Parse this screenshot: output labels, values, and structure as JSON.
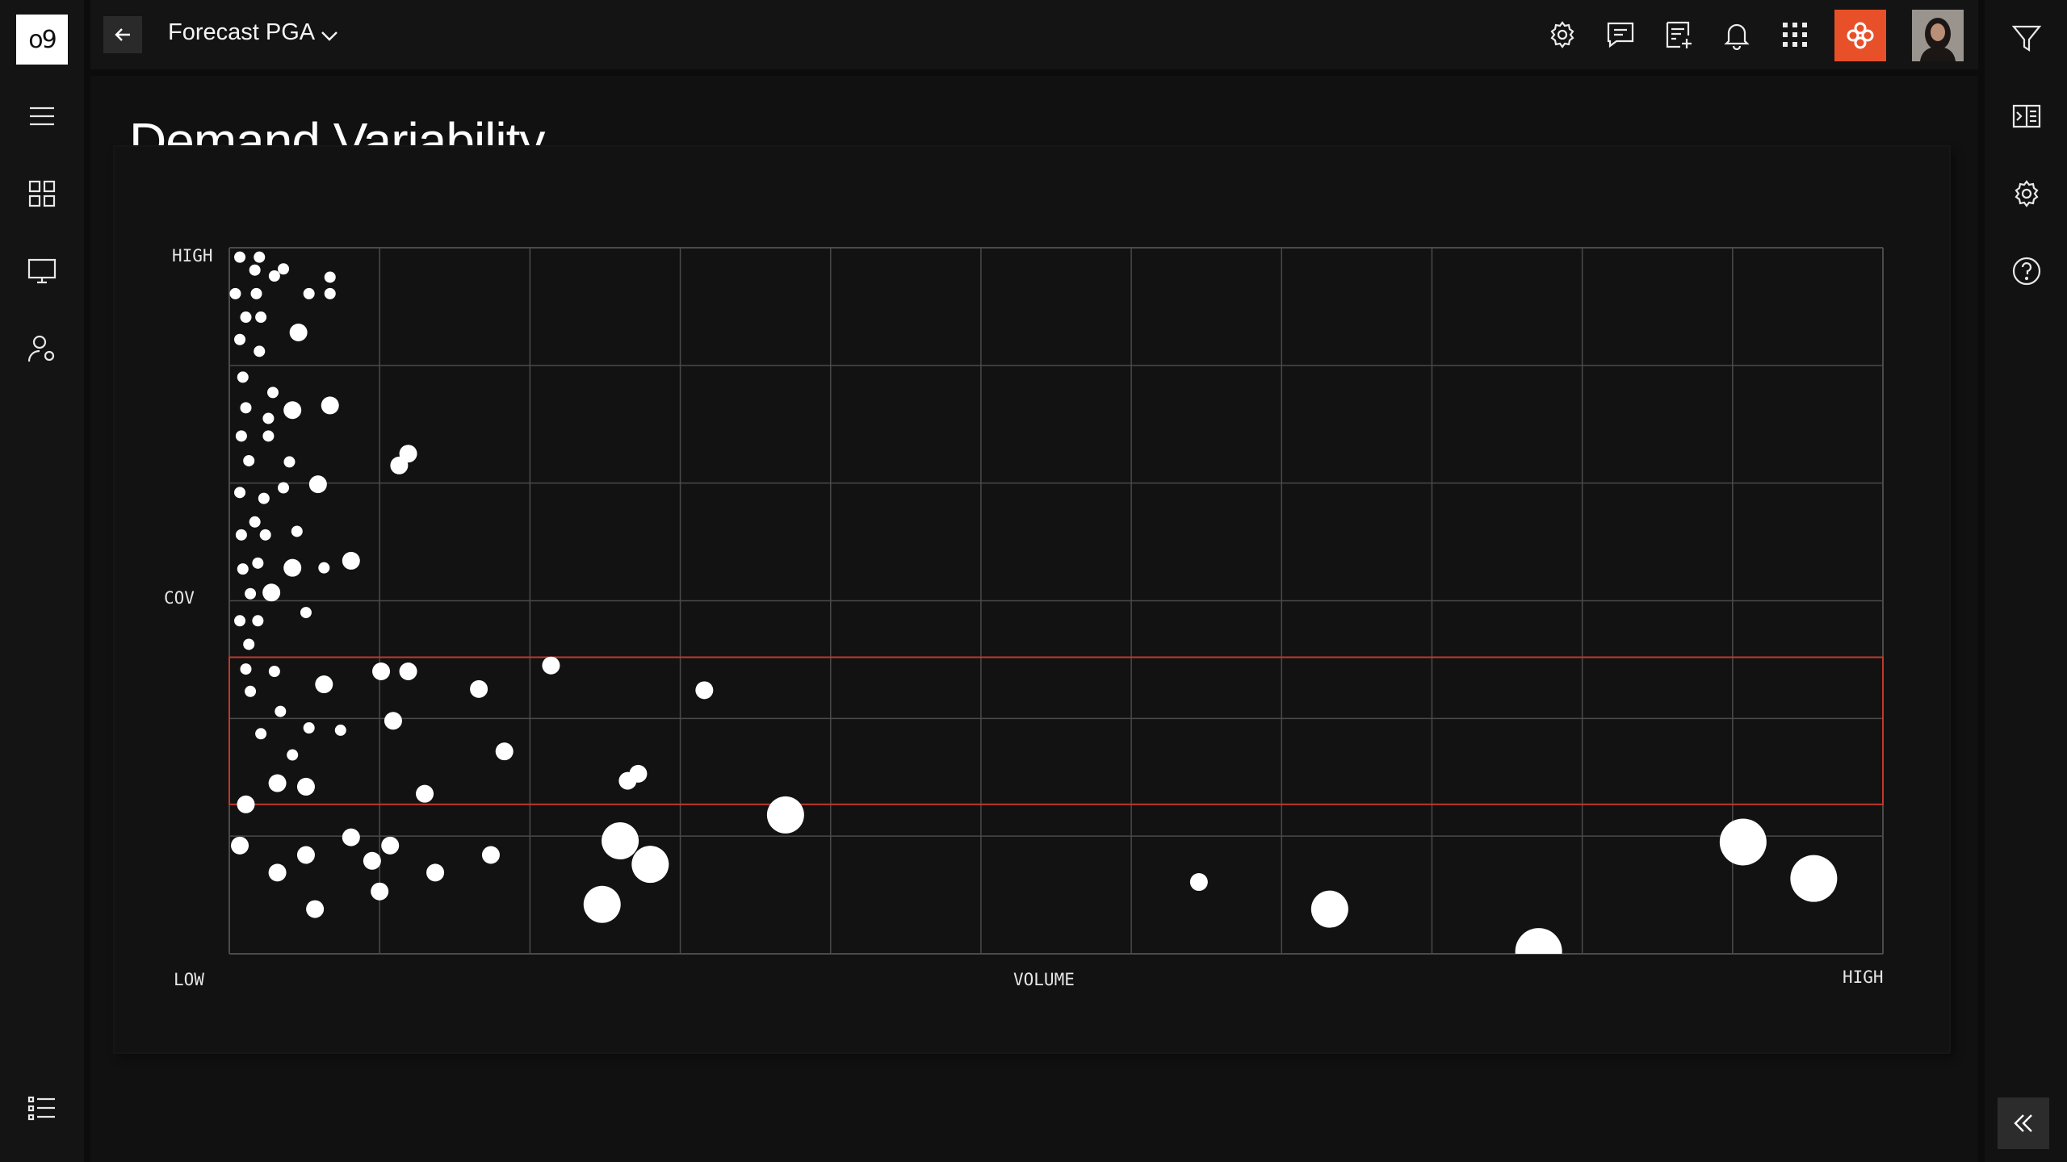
{
  "app": {
    "logo_text": "o9",
    "title": "Forecast PGA"
  },
  "page": {
    "title": "Demand Variability"
  },
  "colors": {
    "background": "#0c0c0c",
    "panel": "#141414",
    "accent": "#e8502a",
    "highlight_band": "#c0392b",
    "point": "#ffffff",
    "grid": "#4a4a4a"
  },
  "icons": {
    "left_rail": [
      "menu-icon",
      "grid-icon",
      "monitor-icon",
      "user-settings-icon",
      "list-icon"
    ],
    "top_bar": [
      "gear-icon",
      "comment-icon",
      "note-add-icon",
      "bell-icon",
      "apps-grid-icon"
    ],
    "right_rail": [
      "filter-icon",
      "panel-icon",
      "gear-icon",
      "help-icon",
      "collapse-icon"
    ]
  },
  "chart_data": {
    "type": "scatter",
    "title": "Demand Variability",
    "xlabel": "VOLUME",
    "ylabel": "COV",
    "x_tick_labels": {
      "low": "LOW",
      "high": "HIGH"
    },
    "y_tick_labels": {
      "high": "HIGH"
    },
    "xlim": [
      0,
      11
    ],
    "ylim": [
      0,
      6
    ],
    "grid": true,
    "highlight_band": {
      "y_from": 1.27,
      "y_to": 2.52
    },
    "points": [
      {
        "x": 0.07,
        "y": 5.92,
        "s": 1
      },
      {
        "x": 0.2,
        "y": 5.92,
        "s": 1
      },
      {
        "x": 0.17,
        "y": 5.81,
        "s": 1
      },
      {
        "x": 0.3,
        "y": 5.76,
        "s": 1
      },
      {
        "x": 0.36,
        "y": 5.82,
        "s": 1
      },
      {
        "x": 0.04,
        "y": 5.61,
        "s": 1
      },
      {
        "x": 0.18,
        "y": 5.61,
        "s": 1
      },
      {
        "x": 0.53,
        "y": 5.61,
        "s": 1
      },
      {
        "x": 0.67,
        "y": 5.61,
        "s": 1
      },
      {
        "x": 0.67,
        "y": 5.75,
        "s": 1
      },
      {
        "x": 0.11,
        "y": 5.41,
        "s": 1
      },
      {
        "x": 0.21,
        "y": 5.41,
        "s": 1
      },
      {
        "x": 0.46,
        "y": 5.28,
        "s": 2
      },
      {
        "x": 0.07,
        "y": 5.22,
        "s": 1
      },
      {
        "x": 0.2,
        "y": 5.12,
        "s": 1
      },
      {
        "x": 0.09,
        "y": 4.9,
        "s": 1
      },
      {
        "x": 0.29,
        "y": 4.77,
        "s": 1
      },
      {
        "x": 0.11,
        "y": 4.64,
        "s": 1
      },
      {
        "x": 0.26,
        "y": 4.55,
        "s": 1
      },
      {
        "x": 0.42,
        "y": 4.62,
        "s": 2
      },
      {
        "x": 0.67,
        "y": 4.66,
        "s": 2
      },
      {
        "x": 0.08,
        "y": 4.4,
        "s": 1
      },
      {
        "x": 0.26,
        "y": 4.4,
        "s": 1
      },
      {
        "x": 0.13,
        "y": 4.19,
        "s": 1
      },
      {
        "x": 0.4,
        "y": 4.18,
        "s": 1
      },
      {
        "x": 0.59,
        "y": 3.99,
        "s": 2
      },
      {
        "x": 1.13,
        "y": 4.15,
        "s": 2
      },
      {
        "x": 1.19,
        "y": 4.25,
        "s": 2
      },
      {
        "x": 0.07,
        "y": 3.92,
        "s": 1
      },
      {
        "x": 0.23,
        "y": 3.87,
        "s": 1
      },
      {
        "x": 0.36,
        "y": 3.96,
        "s": 1
      },
      {
        "x": 0.17,
        "y": 3.67,
        "s": 1
      },
      {
        "x": 0.08,
        "y": 3.56,
        "s": 1
      },
      {
        "x": 0.24,
        "y": 3.56,
        "s": 1
      },
      {
        "x": 0.45,
        "y": 3.59,
        "s": 1
      },
      {
        "x": 0.09,
        "y": 3.27,
        "s": 1
      },
      {
        "x": 0.19,
        "y": 3.32,
        "s": 1
      },
      {
        "x": 0.42,
        "y": 3.28,
        "s": 2
      },
      {
        "x": 0.63,
        "y": 3.28,
        "s": 1
      },
      {
        "x": 0.81,
        "y": 3.34,
        "s": 2
      },
      {
        "x": 0.14,
        "y": 3.06,
        "s": 1
      },
      {
        "x": 0.28,
        "y": 3.07,
        "s": 2
      },
      {
        "x": 0.51,
        "y": 2.9,
        "s": 1
      },
      {
        "x": 0.07,
        "y": 2.83,
        "s": 1
      },
      {
        "x": 0.19,
        "y": 2.83,
        "s": 1
      },
      {
        "x": 0.13,
        "y": 2.63,
        "s": 1
      },
      {
        "x": 0.11,
        "y": 2.42,
        "s": 1
      },
      {
        "x": 0.3,
        "y": 2.4,
        "s": 1
      },
      {
        "x": 0.14,
        "y": 2.23,
        "s": 1
      },
      {
        "x": 0.63,
        "y": 2.29,
        "s": 2
      },
      {
        "x": 1.01,
        "y": 2.4,
        "s": 2
      },
      {
        "x": 1.19,
        "y": 2.4,
        "s": 2
      },
      {
        "x": 1.66,
        "y": 2.25,
        "s": 2
      },
      {
        "x": 2.14,
        "y": 2.45,
        "s": 2
      },
      {
        "x": 3.16,
        "y": 2.24,
        "s": 2
      },
      {
        "x": 0.34,
        "y": 2.06,
        "s": 1
      },
      {
        "x": 1.09,
        "y": 1.98,
        "s": 2
      },
      {
        "x": 0.53,
        "y": 1.92,
        "s": 1
      },
      {
        "x": 0.74,
        "y": 1.9,
        "s": 1
      },
      {
        "x": 0.21,
        "y": 1.87,
        "s": 1
      },
      {
        "x": 1.83,
        "y": 1.72,
        "s": 2
      },
      {
        "x": 0.42,
        "y": 1.69,
        "s": 1
      },
      {
        "x": 2.65,
        "y": 1.47,
        "s": 2
      },
      {
        "x": 2.72,
        "y": 1.53,
        "s": 2
      },
      {
        "x": 0.32,
        "y": 1.45,
        "s": 2
      },
      {
        "x": 0.51,
        "y": 1.42,
        "s": 2
      },
      {
        "x": 1.3,
        "y": 1.36,
        "s": 2
      },
      {
        "x": 0.11,
        "y": 1.27,
        "s": 2
      },
      {
        "x": 3.7,
        "y": 1.18,
        "s": 4
      },
      {
        "x": 0.81,
        "y": 0.99,
        "s": 2
      },
      {
        "x": 0.07,
        "y": 0.92,
        "s": 2
      },
      {
        "x": 1.07,
        "y": 0.92,
        "s": 2
      },
      {
        "x": 0.51,
        "y": 0.84,
        "s": 2
      },
      {
        "x": 0.95,
        "y": 0.79,
        "s": 2
      },
      {
        "x": 1.74,
        "y": 0.84,
        "s": 2
      },
      {
        "x": 0.32,
        "y": 0.69,
        "s": 2
      },
      {
        "x": 1.37,
        "y": 0.69,
        "s": 2
      },
      {
        "x": 1.0,
        "y": 0.53,
        "s": 2
      },
      {
        "x": 0.57,
        "y": 0.38,
        "s": 2
      },
      {
        "x": 2.6,
        "y": 0.96,
        "s": 4
      },
      {
        "x": 2.8,
        "y": 0.76,
        "s": 4
      },
      {
        "x": 2.48,
        "y": 0.42,
        "s": 4
      },
      {
        "x": 6.45,
        "y": 0.61,
        "s": 2
      },
      {
        "x": 7.32,
        "y": 0.38,
        "s": 4
      },
      {
        "x": 8.71,
        "y": 0.02,
        "s": 5
      },
      {
        "x": 10.07,
        "y": 0.95,
        "s": 5
      },
      {
        "x": 10.54,
        "y": 0.64,
        "s": 5
      }
    ]
  }
}
